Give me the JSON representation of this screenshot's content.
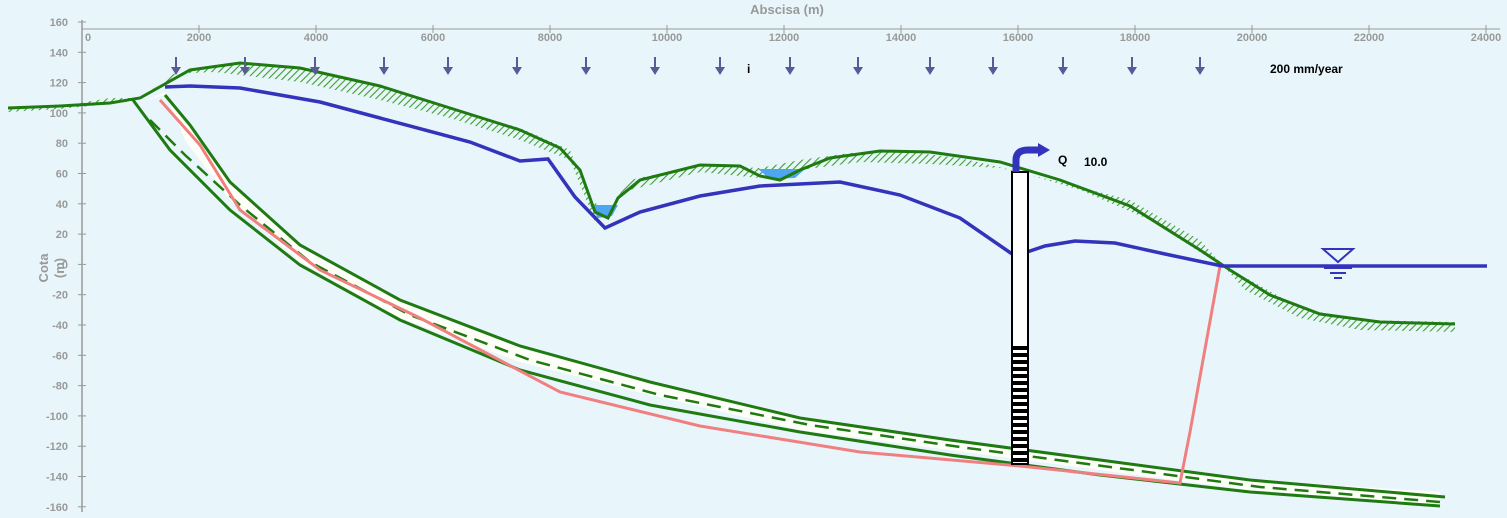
{
  "x_axis": {
    "title": "Abscisa  (m)",
    "ticks": [
      "0",
      "2000",
      "4000",
      "6000",
      "8000",
      "10000",
      "12000",
      "14000",
      "16000",
      "18000",
      "20000",
      "22000",
      "24000"
    ]
  },
  "y_axis": {
    "title_line1": "Cota",
    "title_line2": "(m)",
    "ticks": [
      "160",
      "140",
      "120",
      "100",
      "80",
      "60",
      "40",
      "20",
      "0",
      "-20",
      "-40",
      "-60",
      "-80",
      "-100",
      "-120",
      "-140",
      "-160"
    ]
  },
  "labels": {
    "infiltration_symbol": "i",
    "recharge_rate": "200 mm/year",
    "pumping_symbol": "Q",
    "pumping_rate": "10.0"
  },
  "colors": {
    "terrain": "#1f7a12",
    "water_table": "#3333bb",
    "fresh_salt_interface": "#f08080",
    "water_body": "#4da6f0",
    "arrow": "#5a5a9a",
    "well": "#000000",
    "background": "#e8f6fb"
  },
  "icons": {
    "recharge_arrows": "down-arrow-icon",
    "sea_level_symbol": "water-level-triangle-icon",
    "pump_outlet": "pump-outlet-arrow-icon"
  }
}
